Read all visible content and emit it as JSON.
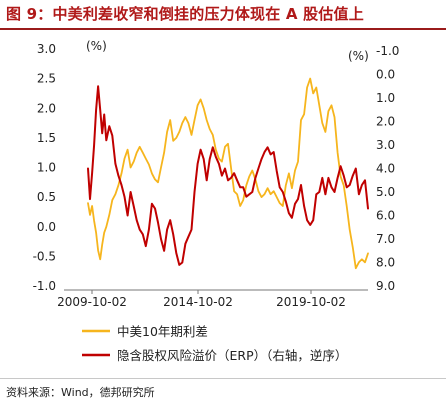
{
  "header": {
    "title": "图 9：中美利差收窄和倒挂的压力体现在 A 股估值上"
  },
  "footer": {
    "source": "资料来源：Wind，德邦研究所"
  },
  "colors": {
    "spread": "#f6b51d",
    "erp": "#c00000",
    "title": "#b01919"
  },
  "chart_data": {
    "type": "line",
    "left_unit": "(%)",
    "right_unit": "(%)",
    "left_ticks": [
      "3.0",
      "2.5",
      "2.0",
      "1.5",
      "1.0",
      "0.5",
      "0.0",
      "-0.5",
      "-1.0"
    ],
    "right_ticks": [
      "-1.0",
      "0.0",
      "1.0",
      "2.0",
      "3.0",
      "4.0",
      "5.0",
      "6.0",
      "7.0",
      "8.0",
      "9.0"
    ],
    "x_ticks": [
      "2009-10-02",
      "2014-10-02",
      "2019-10-02"
    ],
    "ylim_left": [
      -1.0,
      3.0
    ],
    "ylim_right": [
      9.0,
      -1.0
    ],
    "right_axis_inverted": true,
    "xlim": [
      2009.75,
      2023.55
    ],
    "grid": false,
    "legend_position": "bottom",
    "series": [
      {
        "name": "中美10年期利差",
        "axis": "left",
        "color": "#f6b51d",
        "x": [
          2009.75,
          2009.85,
          2009.95,
          2010.05,
          2010.15,
          2010.25,
          2010.35,
          2010.45,
          2010.55,
          2010.65,
          2010.8,
          2010.95,
          2011.1,
          2011.25,
          2011.4,
          2011.55,
          2011.7,
          2011.85,
          2012.0,
          2012.15,
          2012.3,
          2012.45,
          2012.6,
          2012.75,
          2012.9,
          2013.05,
          2013.2,
          2013.35,
          2013.5,
          2013.65,
          2013.8,
          2013.95,
          2014.1,
          2014.25,
          2014.4,
          2014.55,
          2014.7,
          2014.85,
          2015.0,
          2015.15,
          2015.3,
          2015.45,
          2015.6,
          2015.75,
          2015.9,
          2016.05,
          2016.2,
          2016.35,
          2016.5,
          2016.65,
          2016.8,
          2016.95,
          2017.1,
          2017.25,
          2017.4,
          2017.55,
          2017.7,
          2017.85,
          2018.0,
          2018.15,
          2018.3,
          2018.45,
          2018.6,
          2018.75,
          2018.9,
          2019.05,
          2019.2,
          2019.35,
          2019.5,
          2019.65,
          2019.8,
          2019.95,
          2020.1,
          2020.25,
          2020.4,
          2020.55,
          2020.7,
          2020.85,
          2021.0,
          2021.15,
          2021.3,
          2021.45,
          2021.6,
          2021.75,
          2021.9,
          2022.05,
          2022.2,
          2022.35,
          2022.5,
          2022.65,
          2022.8,
          2022.95,
          2023.1,
          2023.25,
          2023.4,
          2023.55
        ],
        "values": [
          0.4,
          0.2,
          0.35,
          0.1,
          -0.1,
          -0.4,
          -0.55,
          -0.3,
          -0.1,
          0.0,
          0.2,
          0.45,
          0.55,
          0.7,
          0.9,
          1.15,
          1.3,
          1.0,
          1.1,
          1.25,
          1.35,
          1.25,
          1.15,
          1.05,
          0.9,
          0.8,
          0.75,
          1.0,
          1.25,
          1.6,
          1.8,
          1.45,
          1.5,
          1.6,
          1.75,
          1.85,
          1.75,
          1.55,
          1.8,
          2.05,
          2.15,
          2.0,
          1.8,
          1.65,
          1.55,
          1.3,
          1.15,
          1.1,
          1.35,
          1.4,
          1.0,
          0.6,
          0.55,
          0.35,
          0.45,
          0.7,
          0.85,
          0.95,
          0.8,
          0.6,
          0.5,
          0.55,
          0.65,
          0.55,
          0.6,
          0.5,
          0.4,
          0.35,
          0.7,
          0.9,
          0.65,
          0.95,
          1.1,
          1.8,
          1.9,
          2.35,
          2.5,
          2.25,
          2.35,
          2.05,
          1.75,
          1.6,
          1.95,
          2.05,
          1.85,
          1.25,
          0.85,
          0.7,
          0.35,
          -0.05,
          -0.35,
          -0.7,
          -0.6,
          -0.55,
          -0.6,
          -0.45
        ]
      },
      {
        "name": "隐含股权风险溢价（ERP）（右轴，逆序）",
        "axis": "right",
        "color": "#c00000",
        "x": [
          2009.75,
          2009.85,
          2009.95,
          2010.05,
          2010.15,
          2010.25,
          2010.35,
          2010.45,
          2010.55,
          2010.65,
          2010.8,
          2010.95,
          2011.1,
          2011.25,
          2011.4,
          2011.55,
          2011.7,
          2011.85,
          2012.0,
          2012.15,
          2012.3,
          2012.45,
          2012.6,
          2012.75,
          2012.9,
          2013.05,
          2013.2,
          2013.35,
          2013.5,
          2013.65,
          2013.8,
          2013.95,
          2014.1,
          2014.25,
          2014.4,
          2014.55,
          2014.7,
          2014.85,
          2015.0,
          2015.15,
          2015.3,
          2015.45,
          2015.6,
          2015.75,
          2015.9,
          2016.05,
          2016.2,
          2016.35,
          2016.5,
          2016.65,
          2016.8,
          2016.95,
          2017.1,
          2017.25,
          2017.4,
          2017.55,
          2017.7,
          2017.85,
          2018.0,
          2018.15,
          2018.3,
          2018.45,
          2018.6,
          2018.75,
          2018.9,
          2019.05,
          2019.2,
          2019.35,
          2019.5,
          2019.65,
          2019.8,
          2019.95,
          2020.1,
          2020.25,
          2020.4,
          2020.55,
          2020.7,
          2020.85,
          2021.0,
          2021.15,
          2021.3,
          2021.45,
          2021.6,
          2021.75,
          2021.9,
          2022.05,
          2022.2,
          2022.35,
          2022.5,
          2022.65,
          2022.8,
          2022.95,
          2023.1,
          2023.25,
          2023.4,
          2023.55
        ],
        "values": [
          4.0,
          5.3,
          4.2,
          3.0,
          1.5,
          0.5,
          1.5,
          2.5,
          1.7,
          2.8,
          2.2,
          2.6,
          3.8,
          4.3,
          4.7,
          5.2,
          6.0,
          5.0,
          5.6,
          6.2,
          6.6,
          6.8,
          7.3,
          6.6,
          5.5,
          5.7,
          6.3,
          7.0,
          7.5,
          6.6,
          6.2,
          6.8,
          7.6,
          8.1,
          8.0,
          7.2,
          6.9,
          6.6,
          5.0,
          3.8,
          3.2,
          3.6,
          4.5,
          3.6,
          3.1,
          3.5,
          3.8,
          4.3,
          4.0,
          4.5,
          4.4,
          4.2,
          4.5,
          4.8,
          4.8,
          5.2,
          5.1,
          5.0,
          4.4,
          4.0,
          3.6,
          3.3,
          3.1,
          3.4,
          3.3,
          4.1,
          4.8,
          5.0,
          5.4,
          5.9,
          6.1,
          5.5,
          5.3,
          4.7,
          5.6,
          6.2,
          6.4,
          6.2,
          5.1,
          5.0,
          4.4,
          5.1,
          4.4,
          4.8,
          5.0,
          4.4,
          3.9,
          4.3,
          4.8,
          4.7,
          4.3,
          4.0,
          5.1,
          4.7,
          4.5,
          5.7
        ]
      }
    ]
  }
}
